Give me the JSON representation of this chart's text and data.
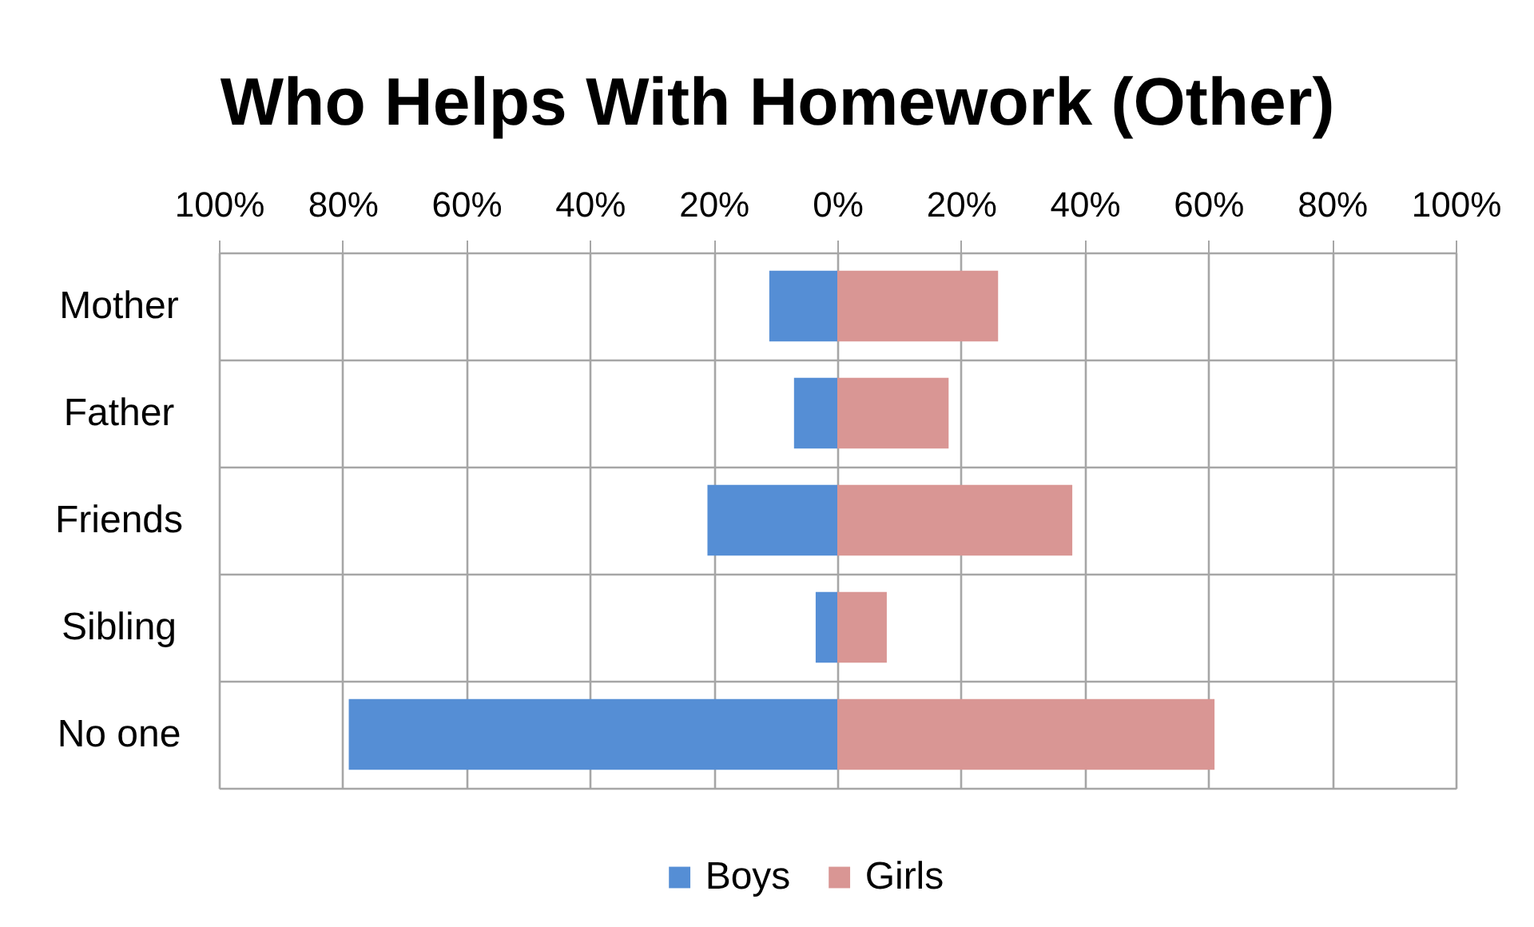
{
  "chart_data": {
    "type": "bar",
    "orientation": "horizontal",
    "stacked": true,
    "title": "Who Helps With Homework (Other)",
    "categories": [
      "Mother",
      "Father",
      "Friends",
      "Sibling",
      "No one"
    ],
    "series": [
      {
        "name": "Boys",
        "color": "#558ed5",
        "values": [
          -11,
          -7,
          -21,
          -3.5,
          -79
        ]
      },
      {
        "name": "Girls",
        "color": "#d99694",
        "values": [
          26,
          18,
          38,
          8,
          61
        ]
      }
    ],
    "xlim": [
      -100,
      100
    ],
    "xticks": [
      {
        "value": -100,
        "label": "100%"
      },
      {
        "value": -80,
        "label": "80%"
      },
      {
        "value": -60,
        "label": "60%"
      },
      {
        "value": -40,
        "label": "40%"
      },
      {
        "value": -20,
        "label": "20%"
      },
      {
        "value": 0,
        "label": "0%"
      },
      {
        "value": 20,
        "label": "20%"
      },
      {
        "value": 40,
        "label": "40%"
      },
      {
        "value": 60,
        "label": "60%"
      },
      {
        "value": 80,
        "label": "80%"
      },
      {
        "value": 100,
        "label": "100%"
      }
    ],
    "grid": true,
    "legend": "bottom"
  }
}
